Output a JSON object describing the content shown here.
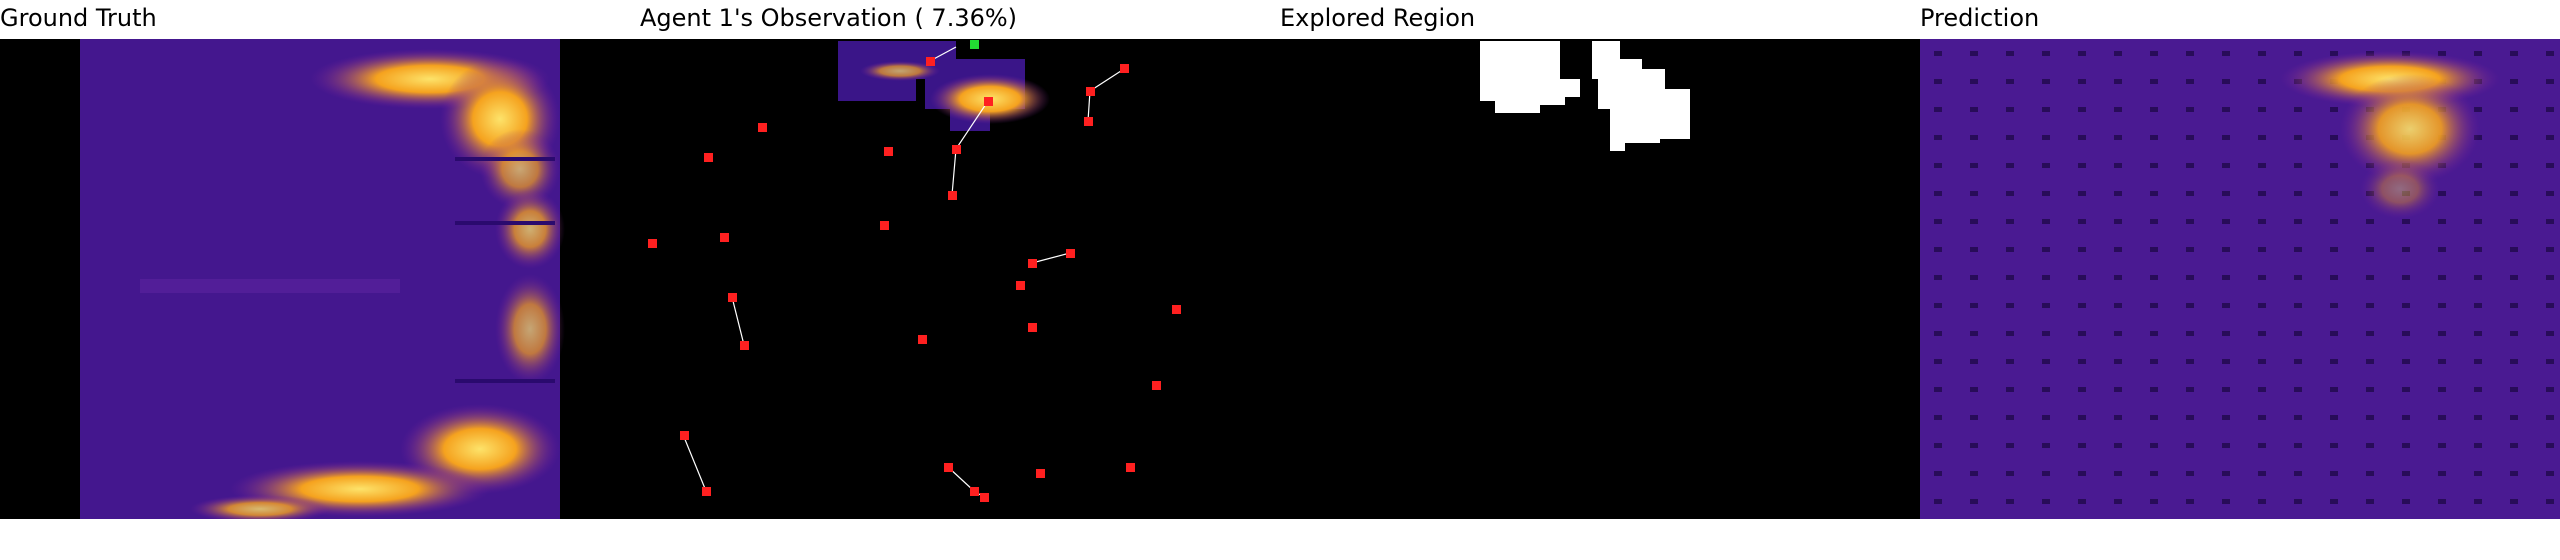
{
  "titles": {
    "ground_truth": "Ground Truth",
    "observation": "Agent 1's Observation ( 7.36%)",
    "explored": "Explored Region",
    "prediction": "Prediction"
  },
  "colors": {
    "background": "#000000",
    "heat_low": "#2a0a6e",
    "heat_mid": "#7a1fa0",
    "heat_high": "#f5b21e",
    "heat_peak": "#fde36a",
    "agent_marker": "#ff2020",
    "active_agent_marker": "#22dd33",
    "trail_line": "#ffffff",
    "explored_mask": "#ffffff"
  }
}
